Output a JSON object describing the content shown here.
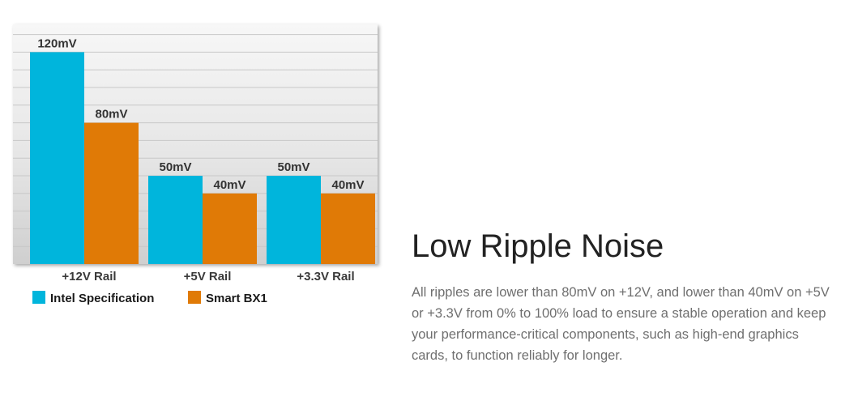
{
  "chart_data": {
    "type": "bar",
    "categories": [
      "+12V Rail",
      "+5V Rail",
      "+3.3V Rail"
    ],
    "series": [
      {
        "name": "Intel Specification",
        "values": [
          120,
          50,
          50
        ],
        "labels": [
          "120mV",
          "50mV",
          "50mV"
        ],
        "color": "#00b5dc"
      },
      {
        "name": "Smart BX1",
        "values": [
          80,
          40,
          40
        ],
        "labels": [
          "80mV",
          "40mV",
          "40mV"
        ],
        "color": "#e07a06"
      }
    ],
    "ylim": [
      0,
      140
    ],
    "grid": true,
    "legend_position": "bottom-left"
  },
  "content": {
    "heading": "Low Ripple Noise",
    "body": "All ripples are lower than 80mV on +12V, and lower than 40mV on +5V or +3.3V from 0% to 100% load to ensure a stable operation and keep your performance-critical components, such as high-end graphics cards, to function reliably for longer."
  }
}
